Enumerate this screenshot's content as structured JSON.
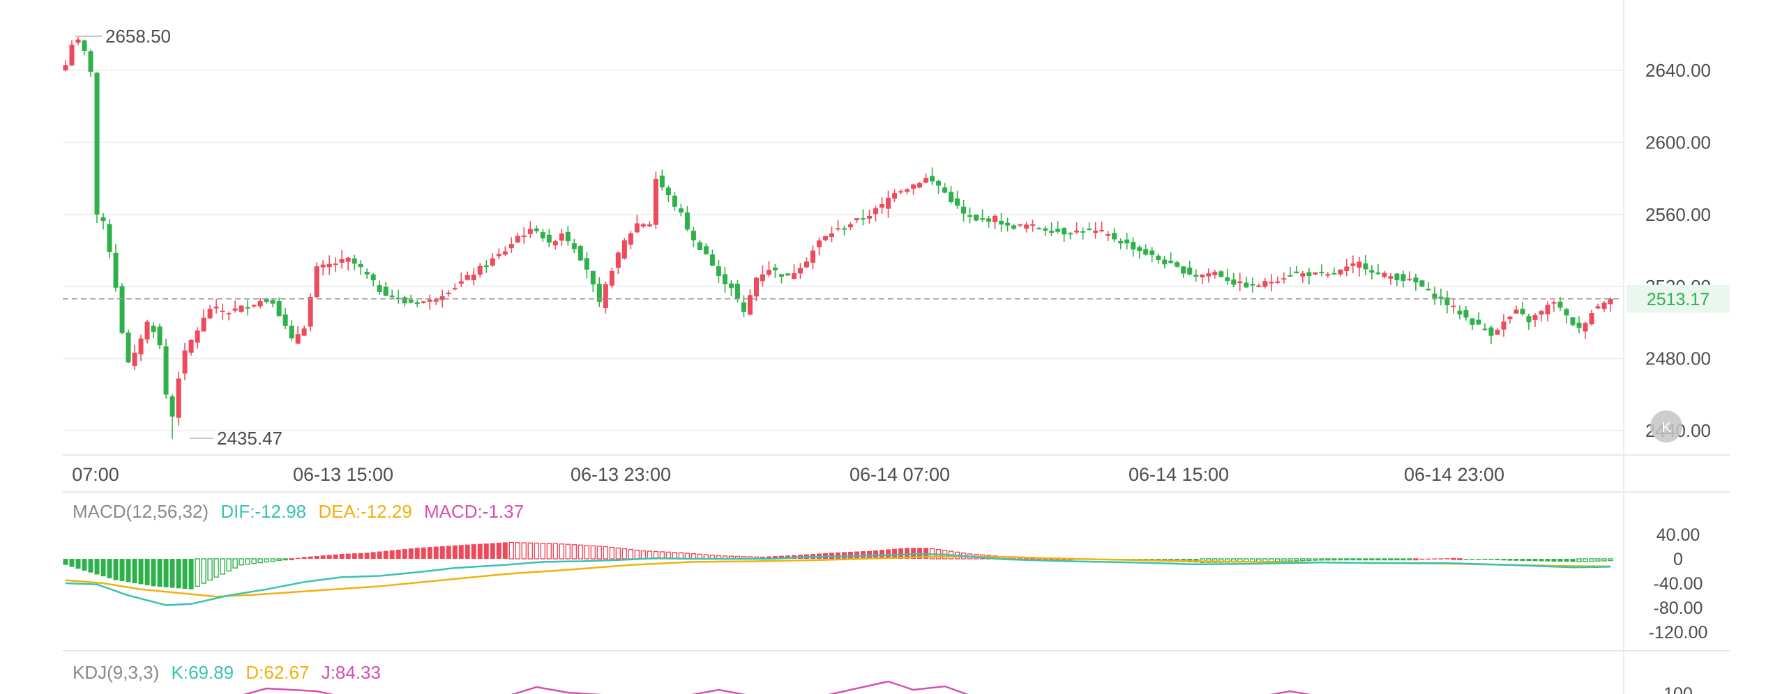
{
  "colors": {
    "up": "#ee4a5b",
    "down": "#2eb14a",
    "grid": "#ededed",
    "axis_text": "#4d4d4d",
    "last_price_bg": "#eaf7ee",
    "last_price_text": "#2eb14a",
    "dif": "#38c2b2",
    "dea": "#f3b00d",
    "macd": "#d64fb1",
    "k": "#38c2b2",
    "d": "#f3b00d",
    "j": "#d64fb1",
    "label_gray": "#8a8a8a"
  },
  "price_panel": {
    "y_ticks": [
      "2640.00",
      "2600.00",
      "2560.00",
      "2520.00",
      "2480.00",
      "2440.00"
    ],
    "high_label": "2658.50",
    "low_label": "2435.47",
    "last_price": "2513.17",
    "x_ticks": [
      "07:00",
      "06-13 15:00",
      "06-13 23:00",
      "06-14 07:00",
      "06-14 15:00",
      "06-14 23:00"
    ]
  },
  "macd_panel": {
    "title": "MACD(12,56,32)",
    "dif_label": "DIF:-12.98",
    "dea_label": "DEA:-12.29",
    "macd_label": "MACD:-1.37",
    "y_ticks": [
      "40.00",
      "0",
      "-40.00",
      "-80.00",
      "-120.00"
    ]
  },
  "kdj_panel": {
    "title": "KDJ(9,3,3)",
    "k_label": "K:69.89",
    "d_label": "D:62.67",
    "j_label": "J:84.33",
    "y_ticks": [
      "100"
    ]
  },
  "chart_data": {
    "type": "candlestick",
    "price_range": [
      2430,
      2665
    ],
    "anchors": [
      [
        0,
        2643
      ],
      [
        1,
        2655
      ],
      [
        2,
        2656
      ],
      [
        3,
        2650
      ],
      [
        4,
        2640
      ],
      [
        5,
        2560
      ],
      [
        6,
        2555
      ],
      [
        7,
        2540
      ],
      [
        8,
        2520
      ],
      [
        9,
        2495
      ],
      [
        10,
        2477
      ],
      [
        11,
        2482
      ],
      [
        12,
        2492
      ],
      [
        13,
        2500
      ],
      [
        14,
        2496
      ],
      [
        15,
        2487
      ],
      [
        16,
        2460
      ],
      [
        17,
        2448
      ],
      [
        18,
        2470
      ],
      [
        19,
        2483
      ],
      [
        20,
        2490
      ],
      [
        23,
        2508
      ],
      [
        26,
        2506
      ],
      [
        31,
        2512
      ],
      [
        33,
        2512
      ],
      [
        36,
        2490
      ],
      [
        38,
        2498
      ],
      [
        40,
        2530
      ],
      [
        42,
        2532
      ],
      [
        45,
        2535
      ],
      [
        47,
        2530
      ],
      [
        50,
        2518
      ],
      [
        54,
        2511
      ],
      [
        58,
        2512
      ],
      [
        62,
        2520
      ],
      [
        66,
        2530
      ],
      [
        70,
        2540
      ],
      [
        72,
        2548
      ],
      [
        75,
        2552
      ],
      [
        77,
        2543
      ],
      [
        79,
        2550
      ],
      [
        81,
        2542
      ],
      [
        83,
        2530
      ],
      [
        85,
        2510
      ],
      [
        87,
        2530
      ],
      [
        89,
        2545
      ],
      [
        91,
        2555
      ],
      [
        93,
        2555
      ],
      [
        94,
        2580
      ],
      [
        96,
        2570
      ],
      [
        98,
        2560
      ],
      [
        100,
        2545
      ],
      [
        102,
        2538
      ],
      [
        104,
        2525
      ],
      [
        106,
        2520
      ],
      [
        108,
        2505
      ],
      [
        110,
        2525
      ],
      [
        112,
        2530
      ],
      [
        115,
        2525
      ],
      [
        118,
        2535
      ],
      [
        120,
        2545
      ],
      [
        122,
        2550
      ],
      [
        125,
        2555
      ],
      [
        128,
        2560
      ],
      [
        130,
        2565
      ],
      [
        132,
        2573
      ],
      [
        134,
        2575
      ],
      [
        137,
        2580
      ],
      [
        139,
        2576
      ],
      [
        141,
        2568
      ],
      [
        143,
        2560
      ],
      [
        145,
        2556
      ],
      [
        148,
        2558
      ],
      [
        150,
        2553
      ],
      [
        153,
        2554
      ],
      [
        156,
        2552
      ],
      [
        159,
        2550
      ],
      [
        162,
        2551
      ],
      [
        165,
        2550
      ],
      [
        168,
        2545
      ],
      [
        171,
        2540
      ],
      [
        174,
        2535
      ],
      [
        177,
        2530
      ],
      [
        180,
        2526
      ],
      [
        183,
        2528
      ],
      [
        186,
        2522
      ],
      [
        189,
        2520
      ],
      [
        192,
        2523
      ],
      [
        195,
        2527
      ],
      [
        198,
        2527
      ],
      [
        201,
        2526
      ],
      [
        204,
        2530
      ],
      [
        206,
        2533
      ],
      [
        209,
        2527
      ],
      [
        212,
        2525
      ],
      [
        215,
        2522
      ],
      [
        218,
        2515
      ],
      [
        221,
        2508
      ],
      [
        224,
        2500
      ],
      [
        227,
        2494
      ],
      [
        229,
        2500
      ],
      [
        231,
        2506
      ],
      [
        233,
        2501
      ],
      [
        235,
        2506
      ],
      [
        237,
        2512
      ],
      [
        239,
        2503
      ],
      [
        241,
        2496
      ],
      [
        243,
        2506
      ],
      [
        245,
        2512
      ],
      [
        246,
        2513.17
      ]
    ],
    "high": 2658.5,
    "low": 2435.47,
    "last": 2513.17,
    "macd": {
      "range": [
        -130,
        50
      ],
      "hist_anchors": [
        [
          0,
          -10
        ],
        [
          8,
          -35
        ],
        [
          14,
          -45
        ],
        [
          20,
          -50
        ],
        [
          28,
          -10
        ],
        [
          33,
          -4
        ],
        [
          38,
          3
        ],
        [
          44,
          8
        ],
        [
          48,
          10
        ],
        [
          52,
          14
        ],
        [
          56,
          18
        ],
        [
          62,
          22
        ],
        [
          70,
          27
        ],
        [
          78,
          25
        ],
        [
          86,
          20
        ],
        [
          92,
          13
        ],
        [
          98,
          10
        ],
        [
          104,
          5
        ],
        [
          110,
          3
        ],
        [
          116,
          6
        ],
        [
          122,
          10
        ],
        [
          128,
          13
        ],
        [
          134,
          18
        ],
        [
          137,
          18
        ],
        [
          140,
          14
        ],
        [
          144,
          8
        ],
        [
          150,
          3
        ],
        [
          160,
          0
        ],
        [
          170,
          -3
        ],
        [
          180,
          -6
        ],
        [
          190,
          -5
        ],
        [
          200,
          -2
        ],
        [
          210,
          -1
        ],
        [
          220,
          1
        ],
        [
          230,
          -3
        ],
        [
          240,
          -5
        ],
        [
          246,
          -3
        ]
      ],
      "dif_anchors": [
        [
          0,
          -40
        ],
        [
          5,
          -42
        ],
        [
          10,
          -60
        ],
        [
          16,
          -76
        ],
        [
          20,
          -74
        ],
        [
          26,
          -60
        ],
        [
          32,
          -50
        ],
        [
          38,
          -38
        ],
        [
          44,
          -30
        ],
        [
          50,
          -28
        ],
        [
          56,
          -22
        ],
        [
          62,
          -15
        ],
        [
          70,
          -10
        ],
        [
          76,
          -5
        ],
        [
          82,
          -4
        ],
        [
          88,
          -2
        ],
        [
          94,
          1
        ],
        [
          100,
          0
        ],
        [
          106,
          0
        ],
        [
          112,
          0
        ],
        [
          118,
          3
        ],
        [
          124,
          4
        ],
        [
          130,
          6
        ],
        [
          136,
          8
        ],
        [
          140,
          7
        ],
        [
          146,
          2
        ],
        [
          150,
          -1
        ],
        [
          160,
          -4
        ],
        [
          170,
          -6
        ],
        [
          180,
          -9
        ],
        [
          190,
          -8
        ],
        [
          200,
          -6
        ],
        [
          210,
          -7
        ],
        [
          220,
          -7
        ],
        [
          230,
          -10
        ],
        [
          240,
          -14
        ],
        [
          246,
          -13
        ]
      ],
      "dea_anchors": [
        [
          0,
          -35
        ],
        [
          6,
          -40
        ],
        [
          12,
          -50
        ],
        [
          18,
          -56
        ],
        [
          24,
          -62
        ],
        [
          30,
          -59
        ],
        [
          40,
          -52
        ],
        [
          50,
          -45
        ],
        [
          60,
          -35
        ],
        [
          70,
          -25
        ],
        [
          80,
          -18
        ],
        [
          90,
          -10
        ],
        [
          100,
          -5
        ],
        [
          110,
          -4
        ],
        [
          120,
          -2
        ],
        [
          130,
          1
        ],
        [
          140,
          4
        ],
        [
          150,
          3
        ],
        [
          160,
          0
        ],
        [
          170,
          -2
        ],
        [
          180,
          -4
        ],
        [
          190,
          -5
        ],
        [
          200,
          -6
        ],
        [
          210,
          -7
        ],
        [
          220,
          -8
        ],
        [
          230,
          -10
        ],
        [
          240,
          -12
        ],
        [
          246,
          -12.29
        ]
      ]
    }
  }
}
